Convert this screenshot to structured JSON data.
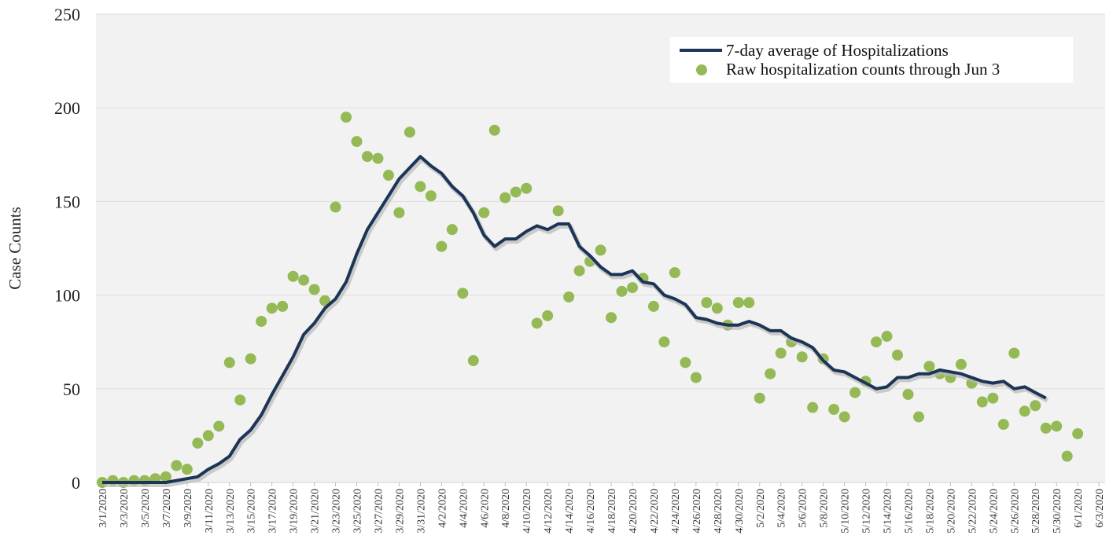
{
  "chart_data": {
    "type": "line",
    "ylabel": "Case Counts",
    "xlabel": "",
    "ylim": [
      0,
      250
    ],
    "yticks": [
      0,
      50,
      100,
      150,
      200,
      250
    ],
    "grid": "horizontal",
    "legend_position": "top-right",
    "x_start_label": "3/1/2020",
    "x": [
      "3/1/2020",
      "3/2/2020",
      "3/3/2020",
      "3/4/2020",
      "3/5/2020",
      "3/6/2020",
      "3/7/2020",
      "3/8/2020",
      "3/9/2020",
      "3/10/2020",
      "3/11/2020",
      "3/12/2020",
      "3/13/2020",
      "3/14/2020",
      "3/15/2020",
      "3/16/2020",
      "3/17/2020",
      "3/18/2020",
      "3/19/2020",
      "3/20/2020",
      "3/21/2020",
      "3/22/2020",
      "3/23/2020",
      "3/24/2020",
      "3/25/2020",
      "3/26/2020",
      "3/27/2020",
      "3/28/2020",
      "3/29/2020",
      "3/30/2020",
      "3/31/2020",
      "4/1/2020",
      "4/2/2020",
      "4/3/2020",
      "4/4/2020",
      "4/5/2020",
      "4/6/2020",
      "4/7/2020",
      "4/8/2020",
      "4/9/2020",
      "4/10/2020",
      "4/11/2020",
      "4/12/2020",
      "4/13/2020",
      "4/14/2020",
      "4/15/2020",
      "4/16/2020",
      "4/17/2020",
      "4/18/2020",
      "4/19/2020",
      "4/20/2020",
      "4/21/2020",
      "4/22/2020",
      "4/23/2020",
      "4/24/2020",
      "4/25/2020",
      "4/26/2020",
      "4/27/2020",
      "4/28/2020",
      "4/29/2020",
      "4/30/2020",
      "5/1/2020",
      "5/2/2020",
      "5/3/2020",
      "5/4/2020",
      "5/5/2020",
      "5/6/2020",
      "5/7/2020",
      "5/8/2020",
      "5/9/2020",
      "5/10/2020",
      "5/11/2020",
      "5/12/2020",
      "5/13/2020",
      "5/14/2020",
      "5/15/2020",
      "5/16/2020",
      "5/17/2020",
      "5/18/2020",
      "5/19/2020",
      "5/20/2020",
      "5/21/2020",
      "5/22/2020",
      "5/23/2020",
      "5/24/2020",
      "5/25/2020",
      "5/26/2020",
      "5/27/2020",
      "5/28/2020",
      "5/29/2020",
      "5/30/2020",
      "5/31/2020",
      "6/1/2020",
      "6/2/2020",
      "6/3/2020"
    ],
    "x_tick_labels": [
      "3/1/2020",
      "3/3/2020",
      "3/5/2020",
      "3/7/2020",
      "3/9/2020",
      "3/11/2020",
      "3/13/2020",
      "3/15/2020",
      "3/17/2020",
      "3/19/2020",
      "3/21/2020",
      "3/23/2020",
      "3/25/2020",
      "3/27/2020",
      "3/29/2020",
      "3/31/2020",
      "4/2/2020",
      "4/4/2020",
      "4/6/2020",
      "4/8/2020",
      "4/10/2020",
      "4/12/2020",
      "4/14/2020",
      "4/16/2020",
      "4/18/2020",
      "4/20/2020",
      "4/22/2020",
      "4/24/2020",
      "4/26/2020",
      "4/28/2020",
      "4/30/2020",
      "5/2/2020",
      "5/4/2020",
      "5/6/2020",
      "5/8/2020",
      "5/10/2020",
      "5/12/2020",
      "5/14/2020",
      "5/16/2020",
      "5/18/2020",
      "5/20/2020",
      "5/22/2020",
      "5/24/2020",
      "5/26/2020",
      "5/28/2020",
      "5/30/2020",
      "6/1/2020",
      "6/3/2020"
    ],
    "series": [
      {
        "name": "7-day average of Hospitalizations",
        "type": "line",
        "color": "#1c3557",
        "values": [
          0,
          0,
          0,
          0,
          0,
          0,
          0,
          1,
          2,
          3,
          7,
          10,
          14,
          23,
          28,
          36,
          47,
          57,
          67,
          79,
          85,
          93,
          98,
          107,
          122,
          135,
          144,
          153,
          162,
          168,
          174,
          169,
          165,
          158,
          153,
          144,
          132,
          126,
          130,
          130,
          134,
          137,
          135,
          138,
          138,
          126,
          121,
          115,
          111,
          111,
          113,
          107,
          106,
          100,
          98,
          95,
          88,
          87,
          85,
          84,
          84,
          86,
          84,
          81,
          81,
          77,
          75,
          72,
          65,
          60,
          59,
          56,
          53,
          50,
          51,
          56,
          56,
          58,
          58,
          60,
          59,
          58,
          56,
          54,
          53,
          54,
          50,
          51,
          48,
          45,
          null,
          null,
          null,
          null,
          null
        ]
      },
      {
        "name": "Raw hospitalization counts through Jun 3",
        "type": "scatter",
        "color": "#94b955",
        "values": [
          0,
          1,
          0,
          1,
          1,
          2,
          3,
          9,
          7,
          21,
          25,
          30,
          64,
          44,
          66,
          86,
          93,
          94,
          110,
          108,
          103,
          97,
          147,
          195,
          182,
          174,
          173,
          164,
          144,
          187,
          158,
          153,
          126,
          135,
          101,
          65,
          144,
          188,
          152,
          155,
          157,
          85,
          89,
          145,
          99,
          113,
          118,
          124,
          88,
          102,
          104,
          109,
          94,
          75,
          112,
          64,
          56,
          96,
          93,
          84,
          96,
          96,
          45,
          58,
          69,
          75,
          67,
          40,
          66,
          39,
          35,
          48,
          54,
          75,
          78,
          68,
          47,
          35,
          62,
          58,
          56,
          63,
          53,
          43,
          45,
          31,
          69,
          38,
          41,
          29,
          30,
          14,
          26,
          null,
          null
        ]
      }
    ]
  }
}
